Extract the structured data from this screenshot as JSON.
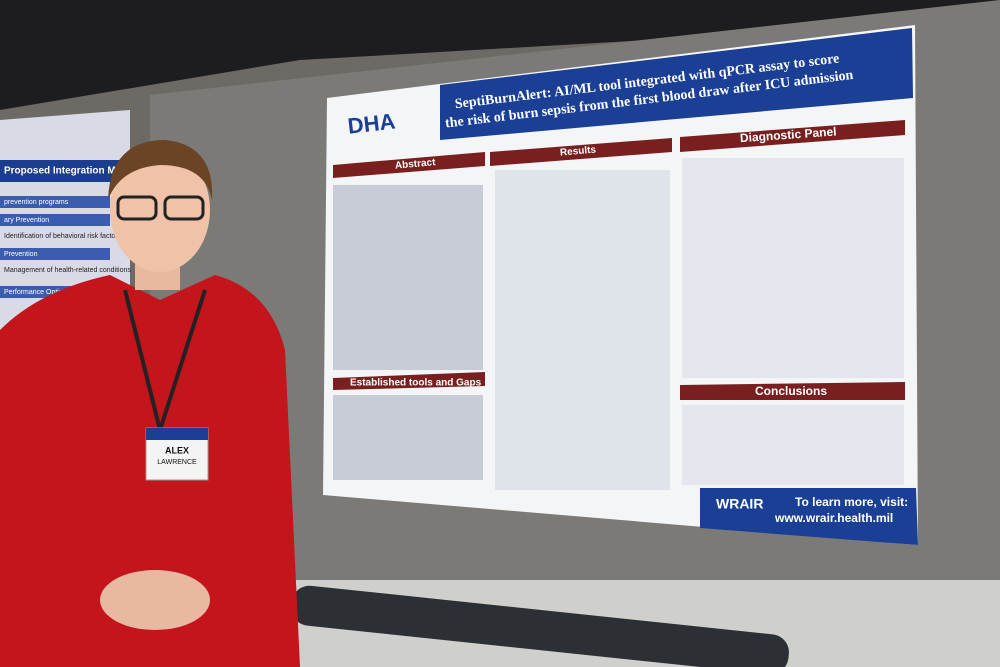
{
  "badge": {
    "name": "ALEX",
    "surname": "LAWRENCE"
  },
  "side_poster": {
    "heading": "Proposed Integration Model",
    "items": [
      "prevention programs",
      "ary Prevention",
      "Identification of behavioral risk factors",
      "Prevention",
      "Management of health-related conditions",
      "Performance Optimization"
    ]
  },
  "poster": {
    "logo": "DHA",
    "title_line1": "SeptiBurnAlert: AI/ML tool integrated with qPCR assay to score",
    "title_line2": "the risk of burn sepsis from the first blood draw after ICU admission",
    "sections": {
      "abstract": "Abstract",
      "results": "Results",
      "diagnostic": "Diagnostic Panel",
      "tools": "Established tools and Gaps",
      "conclusions": "Conclusions"
    },
    "footer": {
      "logo": "WRAIR",
      "cta": "To learn more, visit:",
      "url": "www.wrair.health.mil"
    }
  }
}
